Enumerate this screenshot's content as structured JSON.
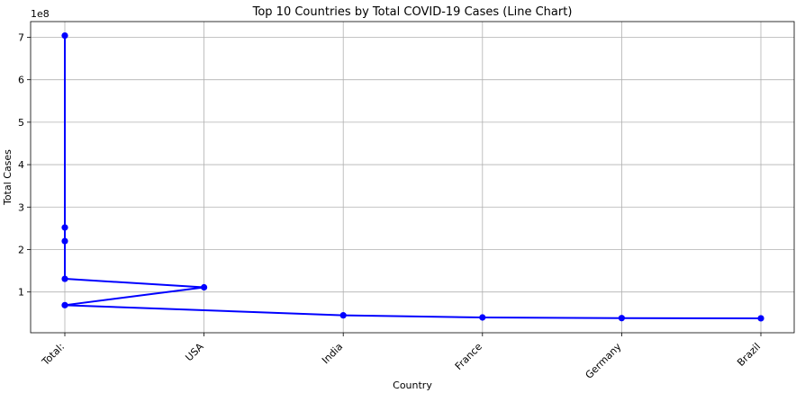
{
  "chart_data": {
    "type": "line",
    "title": "Top 10 Countries by Total COVID-19 Cases (Line Chart)",
    "xlabel": "Country",
    "ylabel": "Total Cases",
    "y_offset_label": "1e8",
    "categories": [
      "Total:",
      "USA",
      "India",
      "France",
      "Germany",
      "Brazil"
    ],
    "points": [
      {
        "category": "Total:",
        "value": 704000000
      },
      {
        "category": "Total:",
        "value": 252000000
      },
      {
        "category": "Total:",
        "value": 220000000
      },
      {
        "category": "Total:",
        "value": 131000000
      },
      {
        "category": "USA",
        "value": 111000000
      },
      {
        "category": "Total:",
        "value": 69000000
      },
      {
        "category": "India",
        "value": 45000000
      },
      {
        "category": "France",
        "value": 40000000
      },
      {
        "category": "Germany",
        "value": 38500000
      },
      {
        "category": "Brazil",
        "value": 38000000
      }
    ],
    "y_ticks": [
      100000000,
      200000000,
      300000000,
      400000000,
      500000000,
      600000000,
      700000000
    ],
    "y_tick_labels": [
      "1",
      "2",
      "3",
      "4",
      "5",
      "6",
      "7"
    ],
    "ylim": [
      4000000,
      737000000
    ],
    "grid": true,
    "line_color": "#0000ff",
    "marker_color": "#0000ff"
  }
}
